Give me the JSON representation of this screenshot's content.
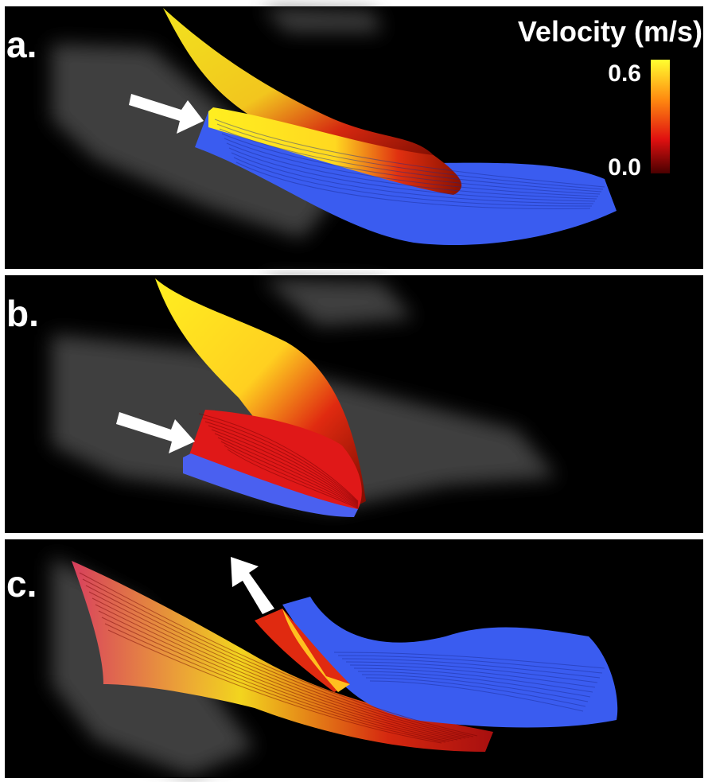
{
  "panels": [
    {
      "label": "a."
    },
    {
      "label": "b."
    },
    {
      "label": "c."
    }
  ],
  "colorbar": {
    "title": "Velocity (m/s)",
    "max_label": "0.6",
    "min_label": "0.0"
  }
}
